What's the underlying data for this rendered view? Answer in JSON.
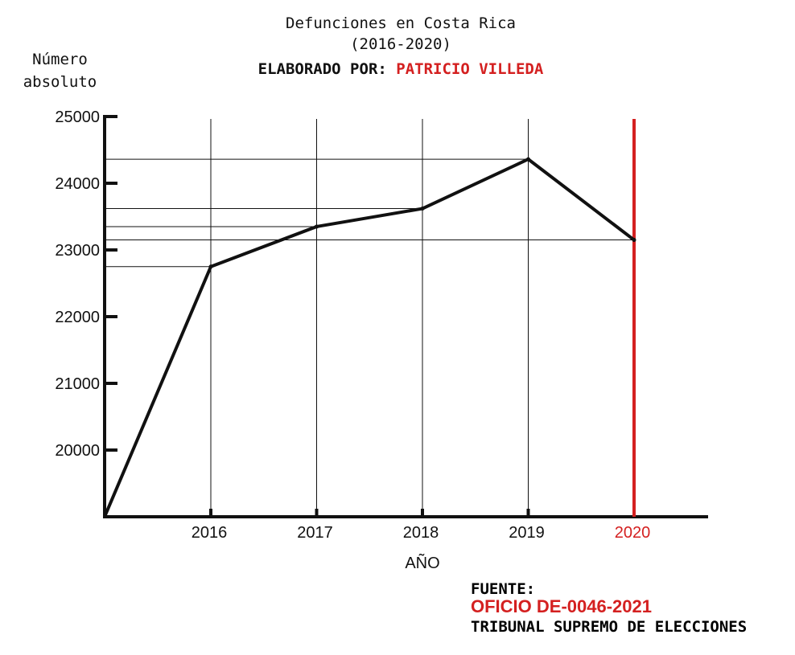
{
  "chart_data": {
    "type": "line",
    "title": "Defunciones en Costa Rica",
    "subtitle": "(2016-2020)",
    "author_prefix": "ELABORADO POR:",
    "author_name": "PATRICIO VILLEDA",
    "ylabel": "Número absoluto",
    "xlabel": "AÑO",
    "x": [
      "2016",
      "2017",
      "2018",
      "2019",
      "2020"
    ],
    "values": [
      22750,
      23350,
      23620,
      24360,
      23150
    ],
    "ylim": [
      19000,
      25000
    ],
    "yticks": [
      "20000",
      "21000",
      "22000",
      "23000",
      "24000",
      "25000"
    ],
    "highlight_year": "2020",
    "colors": {
      "line": "#111111",
      "highlight": "#d42020",
      "grid": "#111111"
    }
  },
  "source": {
    "label": "FUENTE:",
    "document": "OFICIO DE-0046-2021",
    "institution": "TRIBUNAL SUPREMO DE ELECCIONES"
  }
}
